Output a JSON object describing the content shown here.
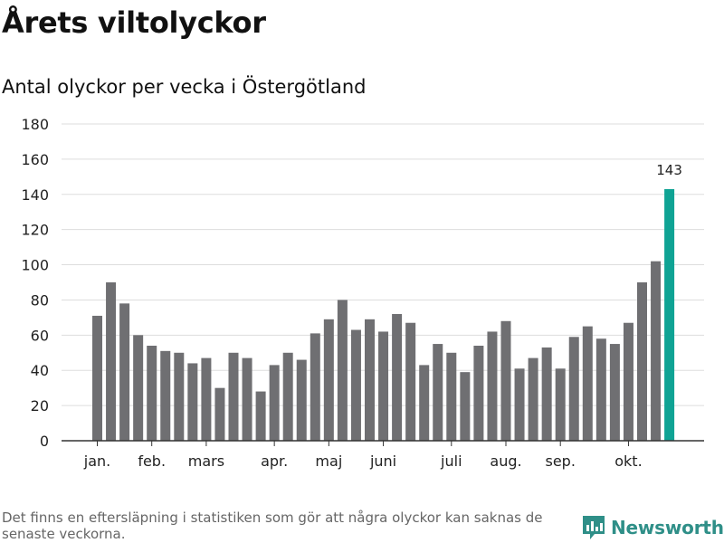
{
  "header": {
    "title": "Årets viltolyckor",
    "subtitle": "Antal olyckor per vecka i Östergötland"
  },
  "footer": {
    "note": "Det finns en eftersläpning i statistiken som gör att några olyckor kan saknas de senaste veckorna.",
    "brand": "Newsworthy"
  },
  "colors": {
    "bar": "#6f6f72",
    "highlight": "#0fa394",
    "grid": "#dddddd",
    "axis": "#333333"
  },
  "chart_data": {
    "type": "bar",
    "title": "Årets viltolyckor",
    "subtitle": "Antal olyckor per vecka i Östergötland",
    "xlabel": "",
    "ylabel": "",
    "ylim": [
      0,
      180
    ],
    "yticks": [
      0,
      20,
      40,
      60,
      80,
      100,
      120,
      140,
      160,
      180
    ],
    "grid": true,
    "values": [
      71,
      90,
      78,
      60,
      54,
      51,
      50,
      44,
      47,
      30,
      50,
      47,
      28,
      43,
      50,
      46,
      61,
      69,
      80,
      63,
      69,
      62,
      72,
      67,
      43,
      55,
      50,
      39,
      54,
      62,
      68,
      41,
      47,
      53,
      41,
      59,
      65,
      58,
      55,
      67,
      90,
      102,
      143
    ],
    "highlight_index": 42,
    "data_labels": [
      {
        "index": 42,
        "text": "143"
      }
    ],
    "month_labels": [
      {
        "label": "jan.",
        "index": 0
      },
      {
        "label": "feb.",
        "index": 4
      },
      {
        "label": "mars",
        "index": 8
      },
      {
        "label": "apr.",
        "index": 13
      },
      {
        "label": "maj",
        "index": 17
      },
      {
        "label": "juni",
        "index": 21
      },
      {
        "label": "juli",
        "index": 26
      },
      {
        "label": "aug.",
        "index": 30
      },
      {
        "label": "sep.",
        "index": 34
      },
      {
        "label": "okt.",
        "index": 39
      }
    ]
  }
}
